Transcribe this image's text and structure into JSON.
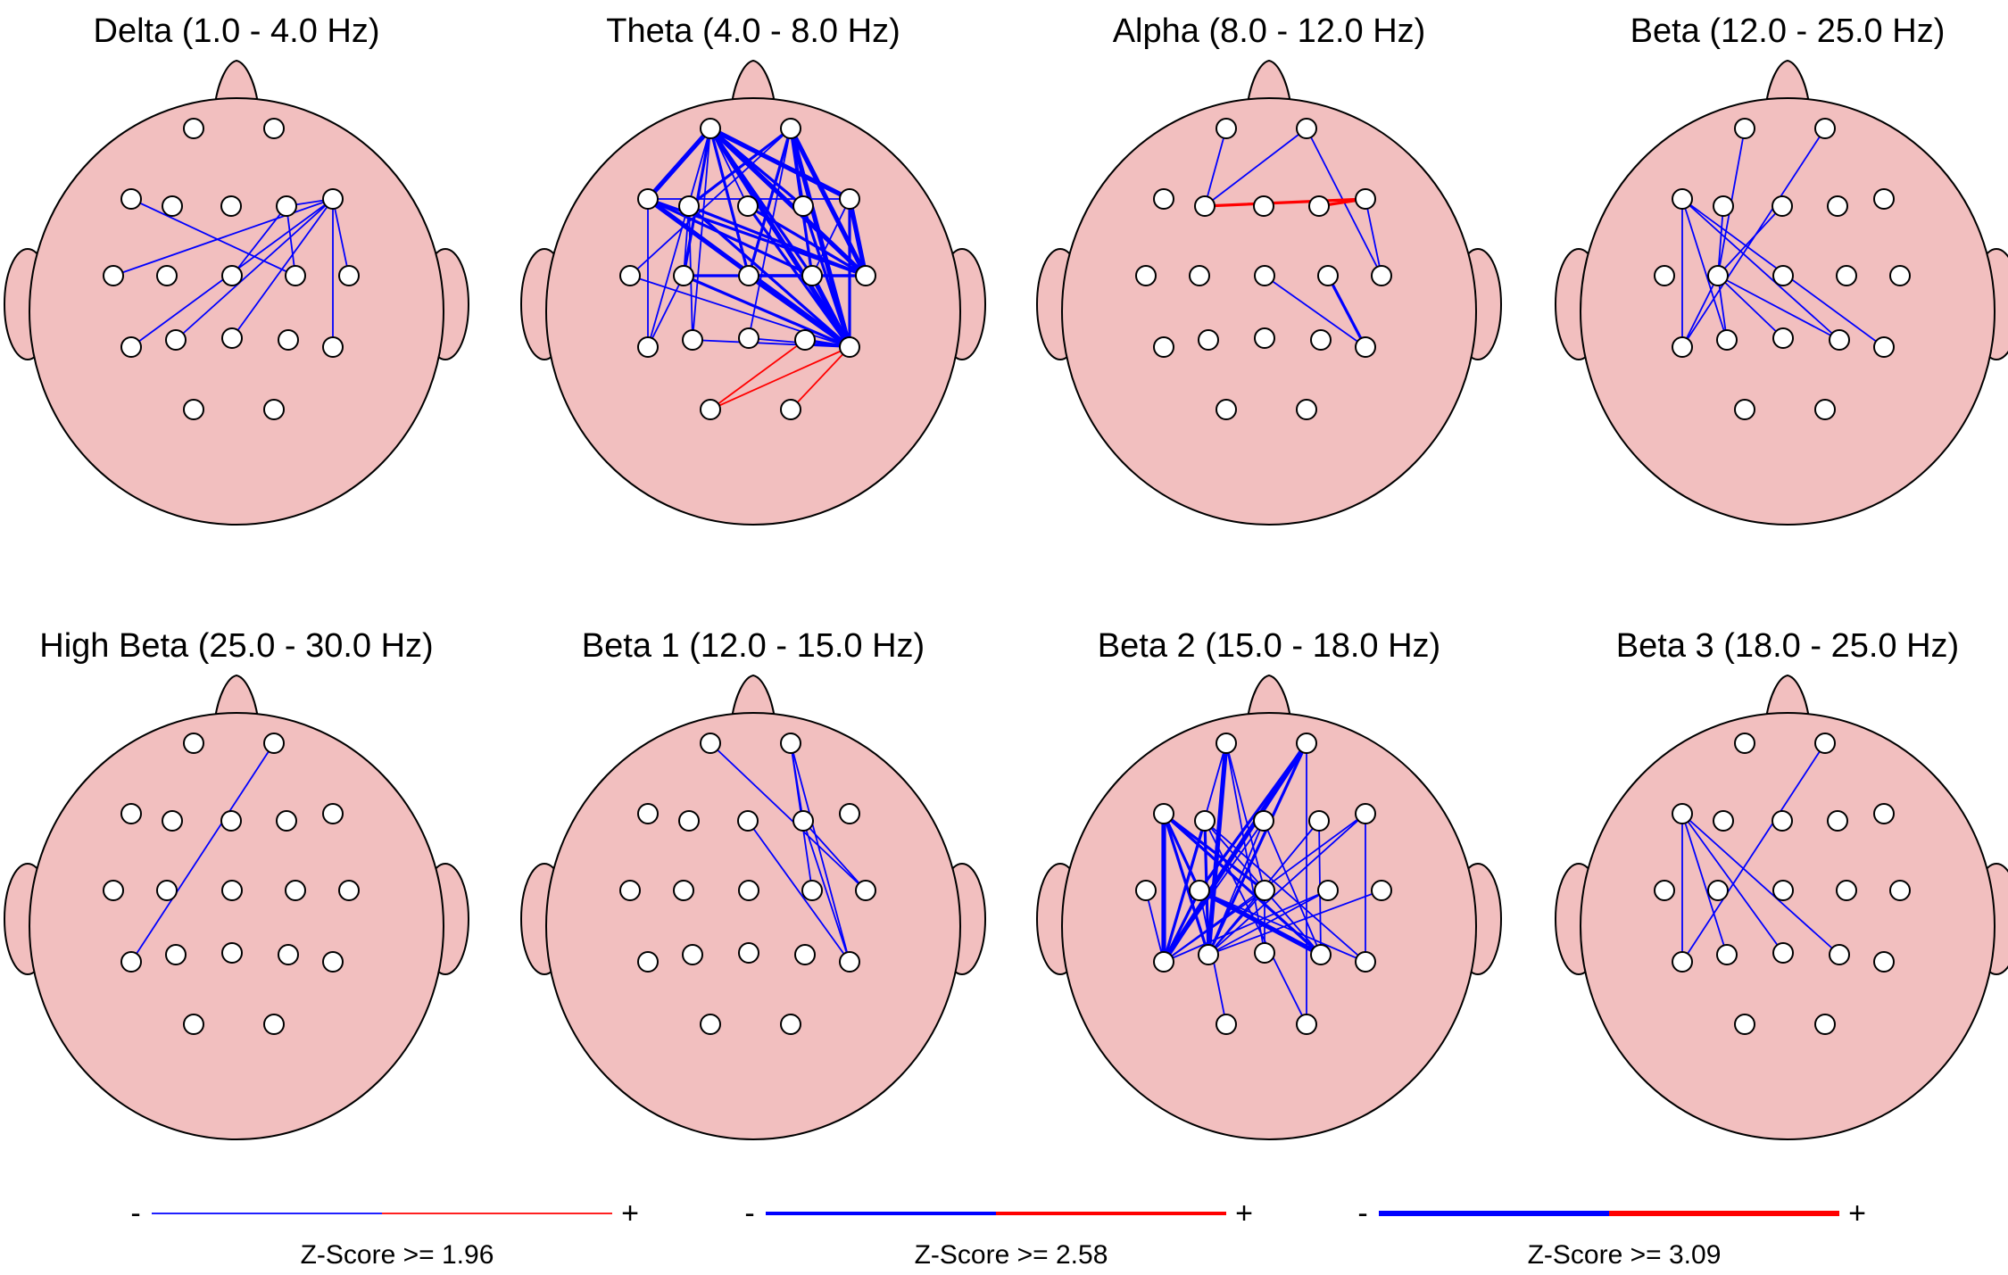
{
  "panels": [
    {
      "title": "Delta (1.0 - 4.0 Hz)",
      "links": [
        [
          "F7",
          "C4",
          1,
          "blue"
        ],
        [
          "F4",
          "C4",
          1,
          "blue"
        ],
        [
          "F4",
          "Cz",
          1,
          "blue"
        ],
        [
          "F8",
          "Pz",
          1,
          "blue"
        ],
        [
          "F8",
          "T3",
          1,
          "blue"
        ],
        [
          "F8",
          "T5",
          1,
          "blue"
        ],
        [
          "F8",
          "T6",
          1,
          "blue"
        ],
        [
          "F8",
          "T4",
          1,
          "blue"
        ],
        [
          "F8",
          "P3",
          1,
          "blue"
        ],
        [
          "F4",
          "F8",
          1,
          "blue"
        ]
      ]
    },
    {
      "title": "Theta (4.0 - 8.0 Hz)",
      "links": [
        [
          "Fp1",
          "F7",
          3,
          "blue"
        ],
        [
          "Fp1",
          "F8",
          3,
          "blue"
        ],
        [
          "Fp1",
          "T4",
          3,
          "blue"
        ],
        [
          "Fp1",
          "T6",
          3,
          "blue"
        ],
        [
          "Fp1",
          "F4",
          2,
          "blue"
        ],
        [
          "Fp1",
          "C3",
          2,
          "blue"
        ],
        [
          "Fp1",
          "P3",
          1,
          "blue"
        ],
        [
          "Fp1",
          "T5",
          1,
          "blue"
        ],
        [
          "Fp1",
          "Cz",
          2,
          "blue"
        ],
        [
          "Fp1",
          "C4",
          2,
          "blue"
        ],
        [
          "Fp1",
          "Fz",
          1,
          "blue"
        ],
        [
          "Fp2",
          "F3",
          2,
          "blue"
        ],
        [
          "Fp2",
          "F4",
          2,
          "blue"
        ],
        [
          "Fp2",
          "T4",
          3,
          "blue"
        ],
        [
          "Fp2",
          "T6",
          3,
          "blue"
        ],
        [
          "Fp2",
          "Cz",
          2,
          "blue"
        ],
        [
          "Fp2",
          "C4",
          2,
          "blue"
        ],
        [
          "Fp2",
          "Pz",
          1,
          "blue"
        ],
        [
          "Fp2",
          "T3",
          1,
          "blue"
        ],
        [
          "F7",
          "T4",
          2,
          "blue"
        ],
        [
          "F7",
          "T6",
          3,
          "blue"
        ],
        [
          "F7",
          "F8",
          1,
          "blue"
        ],
        [
          "F7",
          "C4",
          2,
          "blue"
        ],
        [
          "F7",
          "T5",
          1,
          "blue"
        ],
        [
          "F3",
          "T4",
          2,
          "blue"
        ],
        [
          "F3",
          "P3",
          1,
          "blue"
        ],
        [
          "F3",
          "T6",
          2,
          "blue"
        ],
        [
          "Fz",
          "T4",
          2,
          "blue"
        ],
        [
          "Fz",
          "T6",
          2,
          "blue"
        ],
        [
          "F4",
          "T6",
          2,
          "blue"
        ],
        [
          "F8",
          "T4",
          3,
          "blue"
        ],
        [
          "F8",
          "T6",
          2,
          "blue"
        ],
        [
          "C3",
          "T4",
          2,
          "blue"
        ],
        [
          "C3",
          "T6",
          2,
          "blue"
        ],
        [
          "Cz",
          "T6",
          3,
          "blue"
        ],
        [
          "Cz",
          "C4",
          2,
          "blue"
        ],
        [
          "Cz",
          "T4",
          2,
          "blue"
        ],
        [
          "C4",
          "T6",
          3,
          "blue"
        ],
        [
          "C4",
          "F8",
          1,
          "blue"
        ],
        [
          "T3",
          "T6",
          1,
          "blue"
        ],
        [
          "P3",
          "T6",
          1,
          "blue"
        ],
        [
          "Pz",
          "T6",
          1,
          "blue"
        ],
        [
          "P4",
          "T6",
          2,
          "blue"
        ],
        [
          "T5",
          "C3",
          1,
          "blue"
        ],
        [
          "F3",
          "C3",
          1,
          "blue"
        ],
        [
          "O1",
          "T6",
          1,
          "red"
        ],
        [
          "O1",
          "P4",
          1,
          "red"
        ],
        [
          "O2",
          "T6",
          1,
          "red"
        ]
      ]
    },
    {
      "title": "Alpha (8.0 - 12.0 Hz)",
      "links": [
        [
          "Fp1",
          "F3",
          1,
          "blue"
        ],
        [
          "F3",
          "Fp2",
          1,
          "blue"
        ],
        [
          "Fp2",
          "T4",
          1,
          "blue"
        ],
        [
          "F8",
          "T4",
          1,
          "blue"
        ],
        [
          "C4",
          "T6",
          2,
          "blue"
        ],
        [
          "Cz",
          "T6",
          1,
          "blue"
        ],
        [
          "F4",
          "F8",
          1,
          "blue"
        ],
        [
          "F3",
          "F8",
          2,
          "red"
        ],
        [
          "F4",
          "F8",
          2,
          "red"
        ]
      ]
    },
    {
      "title": "Beta (12.0 - 25.0 Hz)",
      "links": [
        [
          "Fp1",
          "C3",
          1,
          "blue"
        ],
        [
          "Fp2",
          "T5",
          1,
          "blue"
        ],
        [
          "F7",
          "T5",
          1,
          "blue"
        ],
        [
          "F7",
          "P3",
          1,
          "blue"
        ],
        [
          "F7",
          "P4",
          1,
          "blue"
        ],
        [
          "F7",
          "T6",
          1,
          "blue"
        ],
        [
          "F3",
          "C3",
          1,
          "blue"
        ],
        [
          "C3",
          "T5",
          1,
          "blue"
        ],
        [
          "C3",
          "P3",
          1,
          "blue"
        ],
        [
          "C3",
          "P4",
          1,
          "blue"
        ],
        [
          "Fz",
          "C3",
          1,
          "blue"
        ],
        [
          "C3",
          "Pz",
          1,
          "blue"
        ]
      ]
    },
    {
      "title": "High Beta (25.0 - 30.0 Hz)",
      "links": [
        [
          "Fp2",
          "T5",
          1,
          "blue"
        ]
      ]
    },
    {
      "title": "Beta 1 (12.0 - 15.0 Hz)",
      "links": [
        [
          "Fp1",
          "T4",
          1,
          "blue"
        ],
        [
          "Fp2",
          "F4",
          1,
          "blue"
        ],
        [
          "Fp2",
          "C4",
          1,
          "blue"
        ],
        [
          "F4",
          "T4",
          1,
          "blue"
        ],
        [
          "Fz",
          "T6",
          1,
          "blue"
        ],
        [
          "F4",
          "T6",
          1,
          "blue"
        ],
        [
          "Fp2",
          "T6",
          1,
          "blue"
        ]
      ]
    },
    {
      "title": "Beta 2 (15.0 - 18.0 Hz)",
      "links": [
        [
          "F7",
          "T5",
          3,
          "blue"
        ],
        [
          "F7",
          "P3",
          2,
          "blue"
        ],
        [
          "F7",
          "C3",
          2,
          "blue"
        ],
        [
          "F7",
          "Cz",
          2,
          "blue"
        ],
        [
          "F7",
          "P4",
          2,
          "blue"
        ],
        [
          "Fp1",
          "P3",
          3,
          "blue"
        ],
        [
          "Fp1",
          "T5",
          1,
          "blue"
        ],
        [
          "Fp1",
          "Pz",
          1,
          "blue"
        ],
        [
          "Fp1",
          "Cz",
          1,
          "blue"
        ],
        [
          "Fp2",
          "T5",
          3,
          "blue"
        ],
        [
          "Fp2",
          "P3",
          2,
          "blue"
        ],
        [
          "Fp2",
          "C3",
          2,
          "blue"
        ],
        [
          "F3",
          "P3",
          2,
          "blue"
        ],
        [
          "F3",
          "T5",
          2,
          "blue"
        ],
        [
          "F3",
          "P4",
          1,
          "blue"
        ],
        [
          "F3",
          "O2",
          1,
          "blue"
        ],
        [
          "F3",
          "T6",
          1,
          "blue"
        ],
        [
          "Fz",
          "T5",
          1,
          "blue"
        ],
        [
          "Fz",
          "P3",
          1,
          "blue"
        ],
        [
          "Fz",
          "P4",
          1,
          "blue"
        ],
        [
          "F4",
          "P3",
          1,
          "blue"
        ],
        [
          "F4",
          "P4",
          1,
          "blue"
        ],
        [
          "F8",
          "T5",
          1,
          "blue"
        ],
        [
          "F8",
          "T6",
          1,
          "blue"
        ],
        [
          "F8",
          "P3",
          1,
          "blue"
        ],
        [
          "T3",
          "T5",
          1,
          "blue"
        ],
        [
          "C3",
          "T5",
          2,
          "blue"
        ],
        [
          "C3",
          "P4",
          3,
          "blue"
        ],
        [
          "C3",
          "T6",
          1,
          "blue"
        ],
        [
          "C3",
          "O1",
          1,
          "blue"
        ],
        [
          "Cz",
          "T5",
          1,
          "blue"
        ],
        [
          "Cz",
          "P3",
          1,
          "blue"
        ],
        [
          "C4",
          "T5",
          1,
          "blue"
        ],
        [
          "C4",
          "P3",
          1,
          "blue"
        ],
        [
          "T4",
          "P3",
          1,
          "blue"
        ],
        [
          "Pz",
          "Cz",
          1,
          "blue"
        ],
        [
          "Fp2",
          "O2",
          1,
          "blue"
        ]
      ]
    },
    {
      "title": "Beta 3 (18.0 - 25.0 Hz)",
      "links": [
        [
          "F7",
          "T5",
          1,
          "blue"
        ],
        [
          "F7",
          "P3",
          1,
          "blue"
        ],
        [
          "F7",
          "Pz",
          1,
          "blue"
        ],
        [
          "F7",
          "P4",
          1,
          "blue"
        ],
        [
          "Fp2",
          "T5",
          1,
          "blue"
        ]
      ]
    }
  ],
  "legend": [
    {
      "minus": "-",
      "plus": "+",
      "label": "Z-Score >= 1.96",
      "weight": 1
    },
    {
      "minus": "-",
      "plus": "+",
      "label": "Z-Score >= 2.58",
      "weight": 2
    },
    {
      "minus": "-",
      "plus": "+",
      "label": "Z-Score >= 3.09",
      "weight": 3
    }
  ],
  "colors": {
    "head_fill": "#f2bfbf",
    "outline": "#000000",
    "electrode_fill": "#ffffff",
    "negative_link": "#0000ff",
    "positive_link": "#ff0000"
  }
}
